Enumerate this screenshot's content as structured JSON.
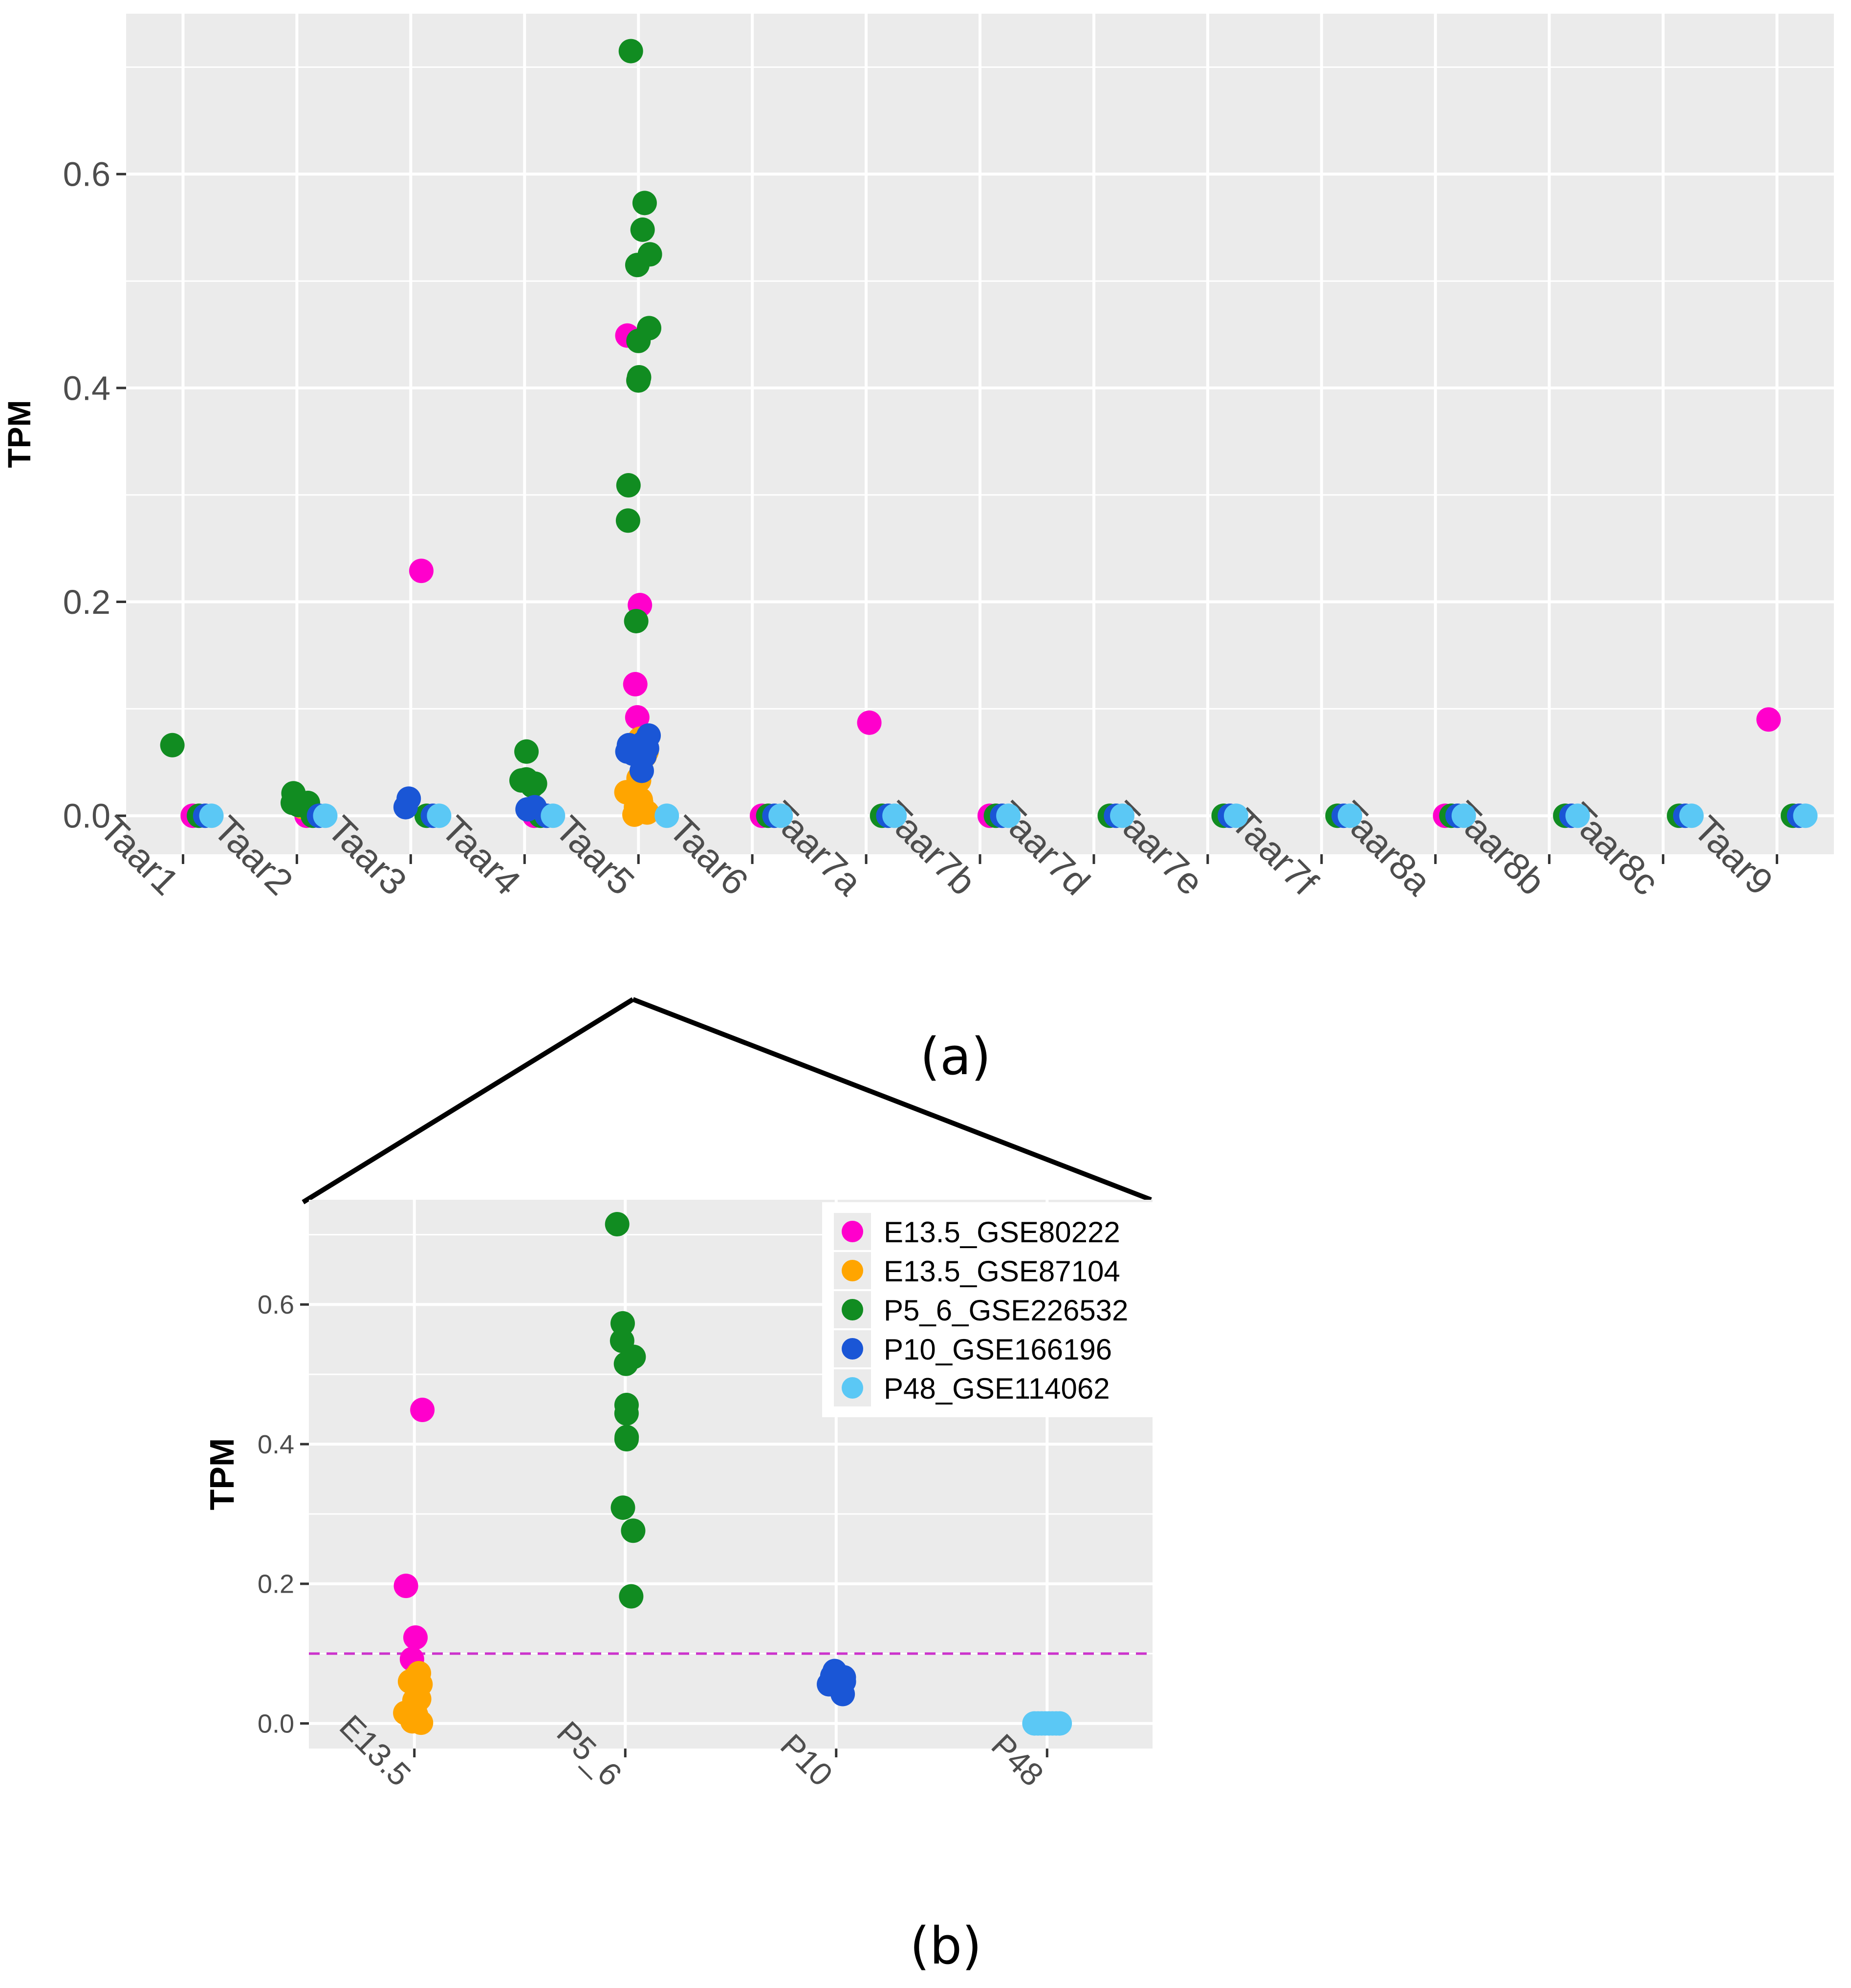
{
  "chart_data": [
    {
      "type": "scatter",
      "panel_label": "(a)",
      "ylabel": "TPM",
      "xlabel": "",
      "ylim": [
        -0.036,
        0.75
      ],
      "yticks": [
        "0.0",
        "0.2",
        "0.4",
        "0.6"
      ],
      "categories": [
        "Taar1",
        "Taar2",
        "Taar3",
        "Taar4",
        "Taar5",
        "Taar6",
        "Taar7a",
        "Taar7b",
        "Taar7d",
        "Taar7e",
        "Taar7f",
        "Taar8a",
        "Taar8b",
        "Taar8c",
        "Taar9"
      ],
      "series": [
        {
          "name": "E13.5_GSE80222",
          "color": "#ff00cc",
          "points": [
            [
              "Taar3",
              0.229
            ],
            [
              "Taar5",
              0.449
            ],
            [
              "Taar5",
              0.197
            ],
            [
              "Taar5",
              0.123
            ],
            [
              "Taar5",
              0.092
            ],
            [
              "Taar7a",
              0.087
            ],
            [
              "Taar9",
              0.09
            ],
            [
              "Taar1",
              0
            ],
            [
              "Taar2",
              0
            ],
            [
              "Taar4",
              0
            ],
            [
              "Taar6",
              0
            ],
            [
              "Taar7b",
              0
            ],
            [
              "Taar8a",
              0
            ]
          ]
        },
        {
          "name": "E13.5_GSE87104",
          "color": "#ffa500",
          "points": [
            [
              "Taar2",
              0.008
            ],
            [
              "Taar5",
              0.072
            ],
            [
              "Taar5",
              0.066
            ],
            [
              "Taar5",
              0.063
            ],
            [
              "Taar5",
              0.06
            ],
            [
              "Taar5",
              0.056
            ],
            [
              "Taar5",
              0.035
            ],
            [
              "Taar5",
              0.033
            ],
            [
              "Taar5",
              0.033
            ],
            [
              "Taar5",
              0.022
            ],
            [
              "Taar5",
              0.015
            ],
            [
              "Taar5",
              0.012
            ],
            [
              "Taar5",
              0.008
            ],
            [
              "Taar5",
              0.003
            ],
            [
              "Taar5",
              0.001
            ]
          ]
        },
        {
          "name": "P5_6_GSE226532",
          "color": "#118c21",
          "points": [
            [
              "Taar1",
              0.066
            ],
            [
              "Taar2",
              0.021
            ],
            [
              "Taar2",
              0.012
            ],
            [
              "Taar2",
              0.012
            ],
            [
              "Taar2",
              0.012
            ],
            [
              "Taar2",
              0.01
            ],
            [
              "Taar2",
              0.01
            ],
            [
              "Taar4",
              0.06
            ],
            [
              "Taar4",
              0.034
            ],
            [
              "Taar4",
              0.033
            ],
            [
              "Taar4",
              0.03
            ],
            [
              "Taar4",
              0.028
            ],
            [
              "Taar5",
              0.715
            ],
            [
              "Taar5",
              0.573
            ],
            [
              "Taar5",
              0.548
            ],
            [
              "Taar5",
              0.525
            ],
            [
              "Taar5",
              0.515
            ],
            [
              "Taar5",
              0.456
            ],
            [
              "Taar5",
              0.444
            ],
            [
              "Taar5",
              0.41
            ],
            [
              "Taar5",
              0.407
            ],
            [
              "Taar5",
              0.309
            ],
            [
              "Taar5",
              0.276
            ],
            [
              "Taar5",
              0.182
            ],
            [
              "Taar1",
              0
            ],
            [
              "Taar2",
              0
            ],
            [
              "Taar3",
              0
            ],
            [
              "Taar4",
              0
            ],
            [
              "Taar6",
              0
            ],
            [
              "Taar7a",
              0
            ],
            [
              "Taar7b",
              0
            ],
            [
              "Taar7d",
              0
            ],
            [
              "Taar7e",
              0
            ],
            [
              "Taar7f",
              0
            ],
            [
              "Taar8a",
              0
            ],
            [
              "Taar8b",
              0
            ],
            [
              "Taar8c",
              0
            ],
            [
              "Taar9",
              0
            ]
          ]
        },
        {
          "name": "P10_GSE166196",
          "color": "#1a56d6",
          "points": [
            [
              "Taar3",
              0.016
            ],
            [
              "Taar3",
              0.008
            ],
            [
              "Taar4",
              0.008
            ],
            [
              "Taar4",
              0.006
            ],
            [
              "Taar5",
              0.075
            ],
            [
              "Taar5",
              0.068
            ],
            [
              "Taar5",
              0.066
            ],
            [
              "Taar5",
              0.063
            ],
            [
              "Taar5",
              0.06
            ],
            [
              "Taar5",
              0.058
            ],
            [
              "Taar5",
              0.056
            ],
            [
              "Taar5",
              0.042
            ],
            [
              "Taar1",
              0
            ],
            [
              "Taar2",
              0
            ],
            [
              "Taar3",
              0
            ],
            [
              "Taar4",
              0
            ],
            [
              "Taar6",
              0
            ],
            [
              "Taar7a",
              0
            ],
            [
              "Taar7b",
              0
            ],
            [
              "Taar7d",
              0
            ],
            [
              "Taar7e",
              0
            ],
            [
              "Taar7f",
              0
            ],
            [
              "Taar8a",
              0
            ],
            [
              "Taar8b",
              0
            ],
            [
              "Taar8c",
              0
            ],
            [
              "Taar9",
              0
            ]
          ]
        },
        {
          "name": "P48_GSE114062",
          "color": "#5bc8f5",
          "points": [
            [
              "Taar1",
              0
            ],
            [
              "Taar2",
              0
            ],
            [
              "Taar3",
              0
            ],
            [
              "Taar4",
              0
            ],
            [
              "Taar5",
              0
            ],
            [
              "Taar6",
              0
            ],
            [
              "Taar7a",
              0
            ],
            [
              "Taar7b",
              0
            ],
            [
              "Taar7d",
              0
            ],
            [
              "Taar7e",
              0
            ],
            [
              "Taar7f",
              0
            ],
            [
              "Taar8a",
              0
            ],
            [
              "Taar8b",
              0
            ],
            [
              "Taar8c",
              0
            ],
            [
              "Taar9",
              0
            ]
          ]
        }
      ]
    },
    {
      "type": "scatter",
      "panel_label": "(b)",
      "ylabel": "TPM",
      "xlabel": "",
      "ylim": [
        -0.036,
        0.75
      ],
      "yticks": [
        "0.0",
        "0.2",
        "0.4",
        "0.6"
      ],
      "categories": [
        "E13.5",
        "P5_6",
        "P10",
        "P48"
      ],
      "threshold": 0.1,
      "legend_position": "top-right",
      "legend": [
        "E13.5_GSE80222",
        "E13.5_GSE87104",
        "P5_6_GSE226532",
        "P10_GSE166196",
        "P48_GSE114062"
      ],
      "series": [
        {
          "name": "E13.5_GSE80222",
          "color": "#ff00cc",
          "points": [
            [
              "E13.5",
              0.449
            ],
            [
              "E13.5",
              0.197
            ],
            [
              "E13.5",
              0.123
            ],
            [
              "E13.5",
              0.092
            ]
          ]
        },
        {
          "name": "E13.5_GSE87104",
          "color": "#ffa500",
          "points": [
            [
              "E13.5",
              0.072
            ],
            [
              "E13.5",
              0.066
            ],
            [
              "E13.5",
              0.063
            ],
            [
              "E13.5",
              0.06
            ],
            [
              "E13.5",
              0.056
            ],
            [
              "E13.5",
              0.035
            ],
            [
              "E13.5",
              0.033
            ],
            [
              "E13.5",
              0.033
            ],
            [
              "E13.5",
              0.022
            ],
            [
              "E13.5",
              0.015
            ],
            [
              "E13.5",
              0.012
            ],
            [
              "E13.5",
              0.008
            ],
            [
              "E13.5",
              0.003
            ],
            [
              "E13.5",
              0.001
            ]
          ]
        },
        {
          "name": "P5_6_GSE226532",
          "color": "#118c21",
          "points": [
            [
              "P5_6",
              0.715
            ],
            [
              "P5_6",
              0.573
            ],
            [
              "P5_6",
              0.548
            ],
            [
              "P5_6",
              0.525
            ],
            [
              "P5_6",
              0.515
            ],
            [
              "P5_6",
              0.456
            ],
            [
              "P5_6",
              0.444
            ],
            [
              "P5_6",
              0.41
            ],
            [
              "P5_6",
              0.407
            ],
            [
              "P5_6",
              0.309
            ],
            [
              "P5_6",
              0.276
            ],
            [
              "P5_6",
              0.182
            ]
          ]
        },
        {
          "name": "P10_GSE166196",
          "color": "#1a56d6",
          "points": [
            [
              "P10",
              0.075
            ],
            [
              "P10",
              0.068
            ],
            [
              "P10",
              0.066
            ],
            [
              "P10",
              0.063
            ],
            [
              "P10",
              0.06
            ],
            [
              "P10",
              0.058
            ],
            [
              "P10",
              0.056
            ],
            [
              "P10",
              0.042
            ]
          ]
        },
        {
          "name": "P48_GSE114062",
          "color": "#5bc8f5",
          "points": [
            [
              "P48",
              0
            ],
            [
              "P48",
              0
            ],
            [
              "P48",
              0
            ],
            [
              "P48",
              0
            ],
            [
              "P48",
              0
            ],
            [
              "P48",
              0
            ],
            [
              "P48",
              0
            ],
            [
              "P48",
              0
            ]
          ]
        }
      ]
    }
  ],
  "colors": {
    "panel_bg": "#ebebeb",
    "grid": "#ffffff",
    "threshold_line": "#cc33cc",
    "zoom_lines": "#000000"
  }
}
